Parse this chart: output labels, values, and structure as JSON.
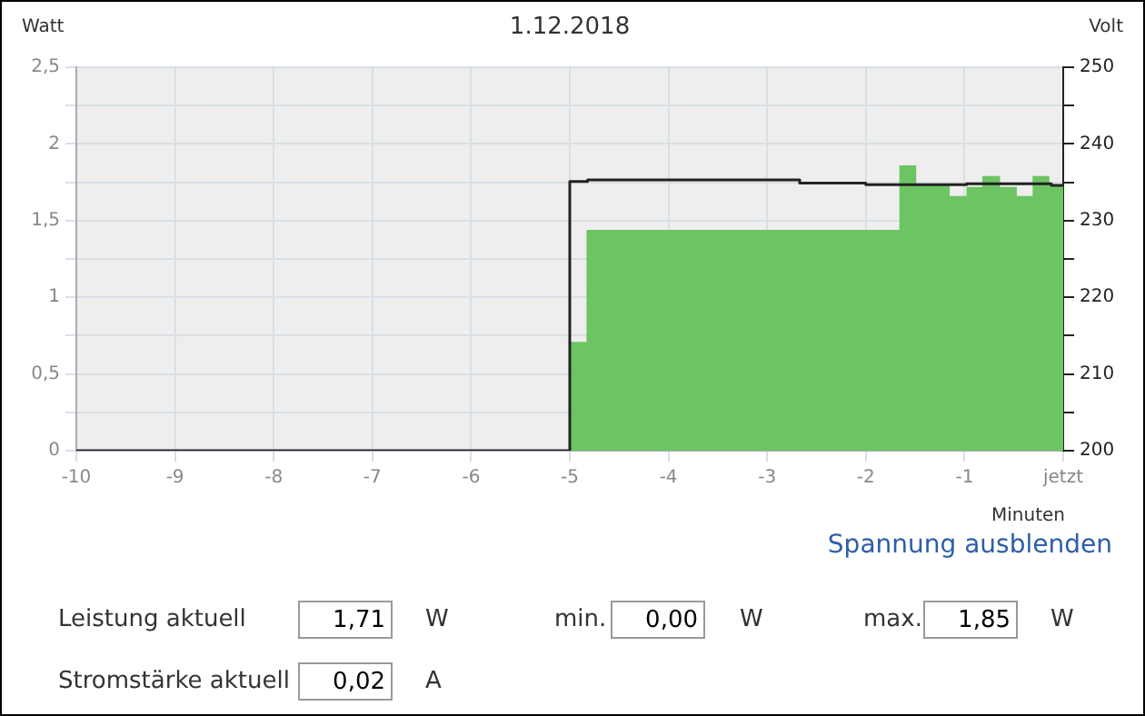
{
  "chart_data": {
    "type": "step",
    "title": "1.12.2018",
    "xlabel": "Minuten",
    "ylabel": "Watt",
    "y2label": "Volt",
    "xlim": [
      -10,
      0
    ],
    "xticks": [
      -10,
      -9,
      -8,
      -7,
      -6,
      -5,
      -4,
      -3,
      -2,
      -1,
      {
        "value": 0,
        "label": "jetzt"
      }
    ],
    "ylim": [
      0,
      2.5
    ],
    "yticks": [
      0,
      {
        "value": 0.25,
        "label": null
      },
      {
        "value": 0.5,
        "label": "0,5"
      },
      {
        "value": 0.75,
        "label": null
      },
      1,
      {
        "value": 1.25,
        "label": null
      },
      {
        "value": 1.5,
        "label": "1,5"
      },
      {
        "value": 1.75,
        "label": null
      },
      2,
      {
        "value": 2.25,
        "label": null
      },
      {
        "value": 2.5,
        "label": "2,5"
      }
    ],
    "y2lim": [
      200,
      250
    ],
    "y2ticks": [
      200,
      {
        "value": 205,
        "label": null
      },
      210,
      {
        "value": 215,
        "label": null
      },
      220,
      {
        "value": 225,
        "label": null
      },
      230,
      {
        "value": 235,
        "label": null
      },
      240,
      {
        "value": 245,
        "label": null
      },
      250
    ],
    "grid": true,
    "legend": false,
    "marker": "none",
    "series": [
      {
        "type": "area",
        "color": "#6cc463",
        "x": [
          -10,
          -5,
          -4.83,
          -1.66,
          -1.49,
          -1.15,
          -0.98,
          -0.82,
          -0.64,
          -0.47,
          -0.31,
          -0.14,
          0
        ],
        "values": [
          0,
          0.71,
          1.44,
          1.86,
          1.73,
          1.66,
          1.72,
          1.79,
          1.72,
          1.66,
          1.79,
          1.73,
          1.73
        ]
      },
      {
        "type": "step",
        "color": "#222222",
        "axis": "y2",
        "x": [
          -10,
          -5,
          -4.82,
          -2.67,
          -2.0,
          -0.98,
          -0.12,
          0
        ],
        "values": [
          200,
          235.1,
          235.3,
          234.9,
          234.7,
          234.8,
          234.6,
          234.6
        ]
      }
    ],
    "annotations": [
      "Spannung ausblenden",
      "Leistung aktuell",
      "1,71",
      "W",
      "min.",
      "0,00",
      "W",
      "max.",
      "1,85",
      "W",
      "Stromstärke aktuell",
      "0,02",
      "A"
    ]
  }
}
